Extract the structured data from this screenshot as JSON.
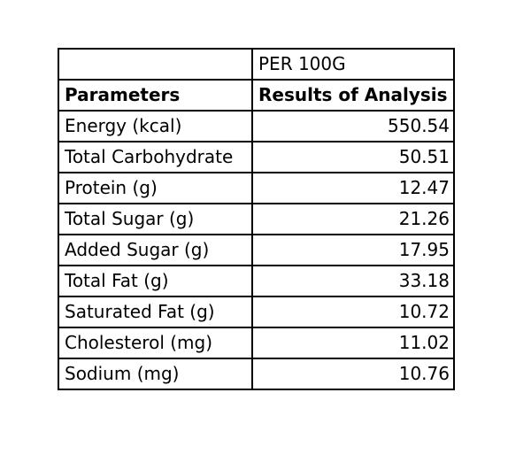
{
  "table": {
    "per_label": "PER 100G",
    "header": {
      "parameters": "Parameters",
      "results": "Results of Analysis"
    },
    "rows": [
      {
        "parameter": "Energy (kcal)",
        "value": "550.54"
      },
      {
        "parameter": "Total Carbohydrate",
        "value": "50.51"
      },
      {
        "parameter": "Protein (g)",
        "value": "12.47"
      },
      {
        "parameter": "Total Sugar (g)",
        "value": "21.26"
      },
      {
        "parameter": "Added Sugar (g)",
        "value": "17.95"
      },
      {
        "parameter": "Total Fat (g)",
        "value": "33.18"
      },
      {
        "parameter": "Saturated Fat (g)",
        "value": "10.72"
      },
      {
        "parameter": "Cholesterol (mg)",
        "value": "11.02"
      },
      {
        "parameter": "Sodium (mg)",
        "value": "10.76"
      }
    ]
  }
}
